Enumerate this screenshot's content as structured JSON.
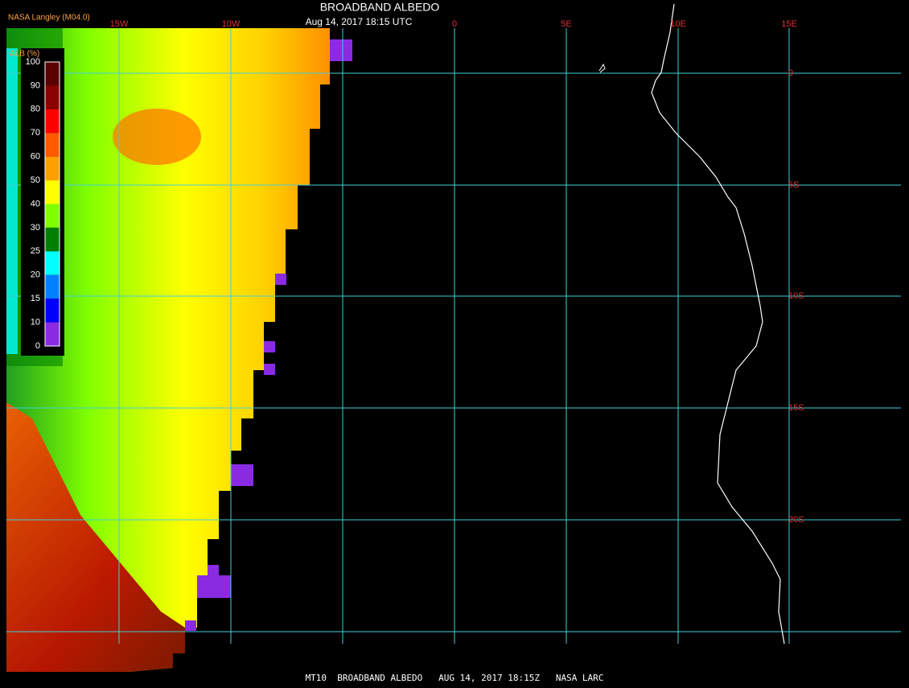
{
  "header": {
    "title": "BROADBAND ALBEDO",
    "timestamp": "Aug 14, 2017 18:15 UTC",
    "producer": "NASA Langley (M04.0)"
  },
  "legend": {
    "title": "ALB (%)",
    "labels": [
      100,
      90,
      80,
      70,
      60,
      50,
      40,
      30,
      25,
      20,
      15,
      10,
      0
    ],
    "colors": [
      "#5a0000",
      "#8b0000",
      "#ff0000",
      "#ff5a00",
      "#ffa000",
      "#ffff00",
      "#80ff00",
      "#008000",
      "#00ffff",
      "#0080ff",
      "#0000ff",
      "#8a2be2"
    ]
  },
  "grid": {
    "longitudes": [
      "15W",
      "10W",
      "0",
      "5E",
      "10E",
      "15E"
    ],
    "latitudes": [
      "0",
      "5S",
      "10S",
      "15S",
      "20S"
    ]
  },
  "footer": "MT10  BROADBAND ALBEDO   AUG 14, 2017 18:15Z   NASA LARC"
}
